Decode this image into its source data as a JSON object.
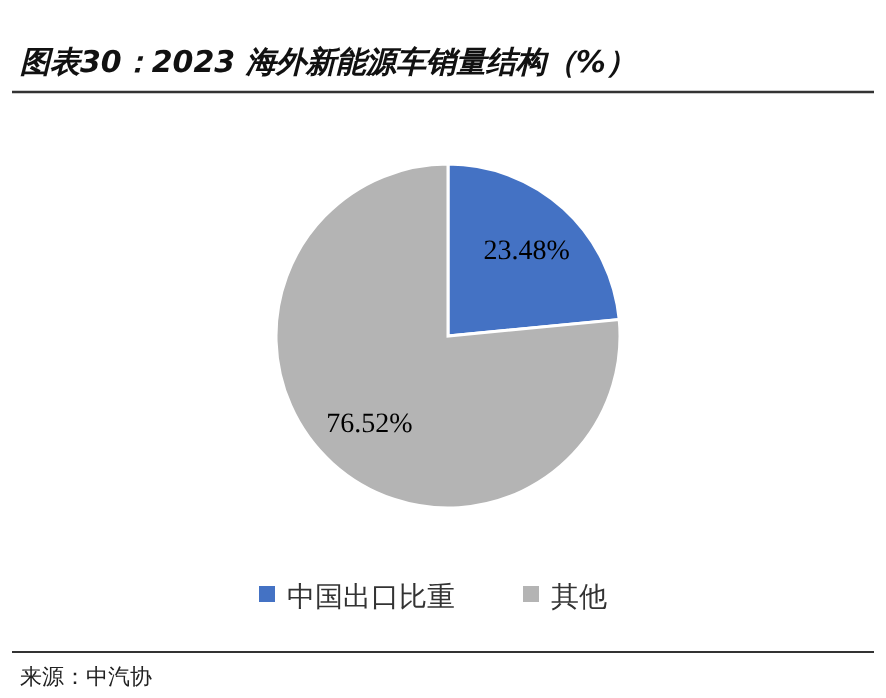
{
  "chart_data": {
    "type": "pie",
    "title": "图表30：2023 海外新能源车销量结构（%）",
    "categories": [
      "中国出口比重",
      "其他"
    ],
    "values": [
      23.48,
      76.52
    ],
    "colors": [
      "#4472c4",
      "#b4b4b4"
    ],
    "value_labels": [
      "23.48%",
      "76.52%"
    ],
    "legend": "bottom",
    "annotations": [
      "来源：中汽协"
    ]
  }
}
